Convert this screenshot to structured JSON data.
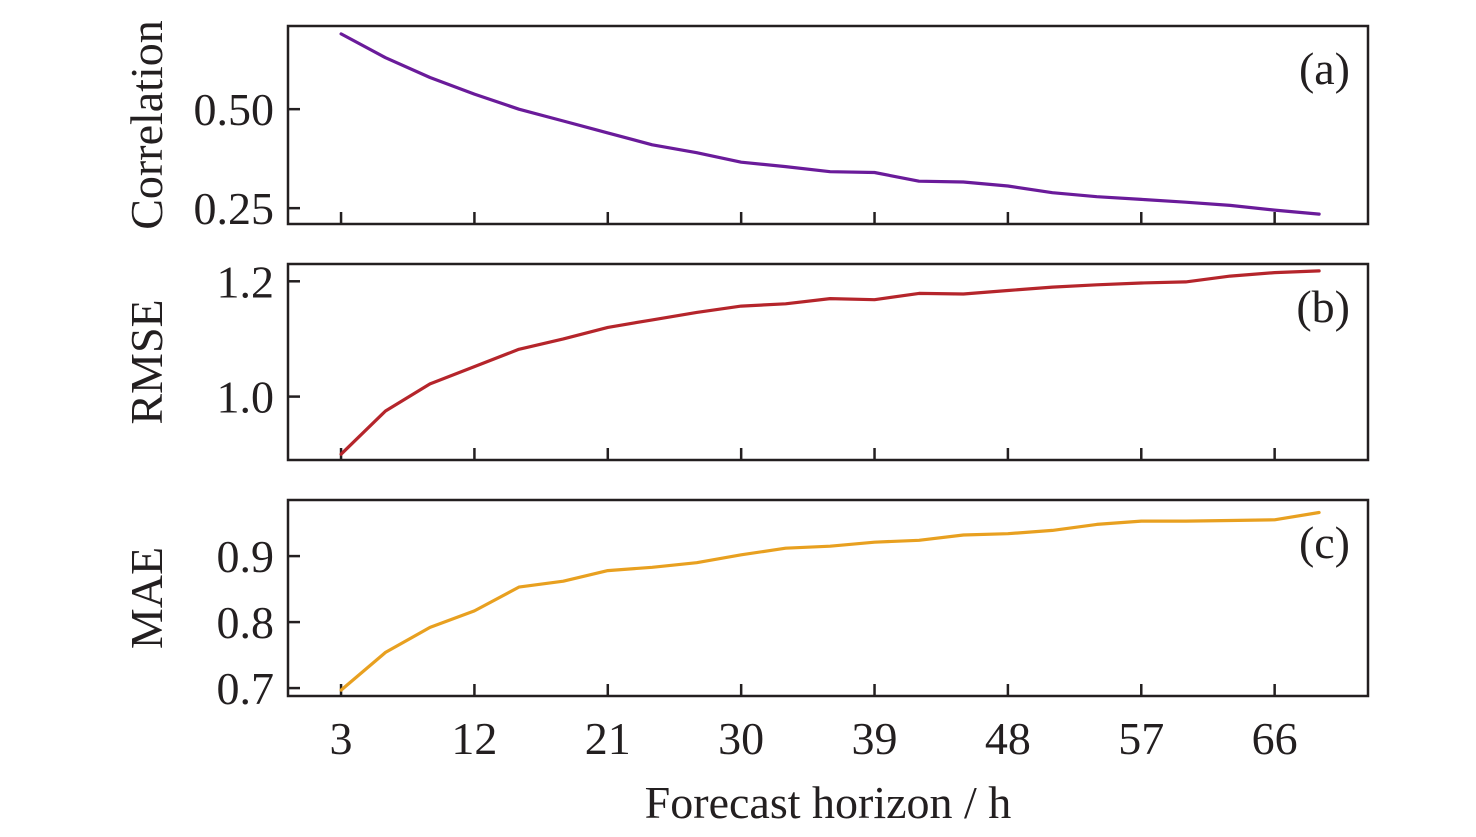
{
  "chart_data": [
    {
      "type": "line",
      "panel_label": "(a)",
      "ylabel": "Correlation",
      "ylim": [
        0.21,
        0.71
      ],
      "yticks": [
        0.25,
        0.5
      ],
      "ytick_labels": [
        "0.25",
        "0.50"
      ],
      "xticks": [
        3,
        12,
        21,
        30,
        39,
        48,
        57,
        66
      ],
      "x": [
        3,
        6,
        9,
        12,
        15,
        18,
        21,
        24,
        27,
        30,
        33,
        36,
        39,
        42,
        45,
        48,
        51,
        54,
        57,
        60,
        63,
        66,
        69
      ],
      "series": [
        {
          "color": "#6a1b9a",
          "values": [
            0.69,
            0.63,
            0.58,
            0.538,
            0.5,
            0.47,
            0.44,
            0.41,
            0.39,
            0.366,
            0.355,
            0.342,
            0.34,
            0.318,
            0.316,
            0.306,
            0.289,
            0.279,
            0.272,
            0.265,
            0.257,
            0.245,
            0.235
          ]
        }
      ]
    },
    {
      "type": "line",
      "panel_label": "(b)",
      "ylabel": "RMSE",
      "ylim": [
        0.89,
        1.23
      ],
      "yticks": [
        1.0,
        1.2
      ],
      "ytick_labels": [
        "1.0",
        "1.2"
      ],
      "xticks": [
        3,
        12,
        21,
        30,
        39,
        48,
        57,
        66
      ],
      "x": [
        3,
        6,
        9,
        12,
        15,
        18,
        21,
        24,
        27,
        30,
        33,
        36,
        39,
        42,
        45,
        48,
        51,
        54,
        57,
        60,
        63,
        66,
        69
      ],
      "series": [
        {
          "color": "#b5252b",
          "values": [
            0.9,
            0.975,
            1.022,
            1.052,
            1.082,
            1.1,
            1.12,
            1.133,
            1.146,
            1.157,
            1.161,
            1.17,
            1.168,
            1.179,
            1.178,
            1.184,
            1.19,
            1.194,
            1.197,
            1.199,
            1.209,
            1.215,
            1.218
          ]
        }
      ]
    },
    {
      "type": "line",
      "panel_label": "(c)",
      "ylabel": "MAE",
      "ylim": [
        0.688,
        0.985
      ],
      "yticks": [
        0.7,
        0.8,
        0.9
      ],
      "ytick_labels": [
        "0.7",
        "0.8",
        "0.9"
      ],
      "xticks": [
        3,
        12,
        21,
        30,
        39,
        48,
        57,
        66
      ],
      "xtick_labels": [
        "3",
        "12",
        "21",
        "30",
        "39",
        "48",
        "57",
        "66"
      ],
      "xlabel": "Forecast horizon / h",
      "x": [
        3,
        6,
        9,
        12,
        15,
        18,
        21,
        24,
        27,
        30,
        33,
        36,
        39,
        42,
        45,
        48,
        51,
        54,
        57,
        60,
        63,
        66,
        69
      ],
      "series": [
        {
          "color": "#e8a020",
          "values": [
            0.697,
            0.754,
            0.792,
            0.817,
            0.853,
            0.862,
            0.878,
            0.883,
            0.89,
            0.902,
            0.912,
            0.915,
            0.921,
            0.924,
            0.932,
            0.934,
            0.939,
            0.948,
            0.953,
            0.953,
            0.954,
            0.955,
            0.966
          ]
        }
      ]
    }
  ]
}
